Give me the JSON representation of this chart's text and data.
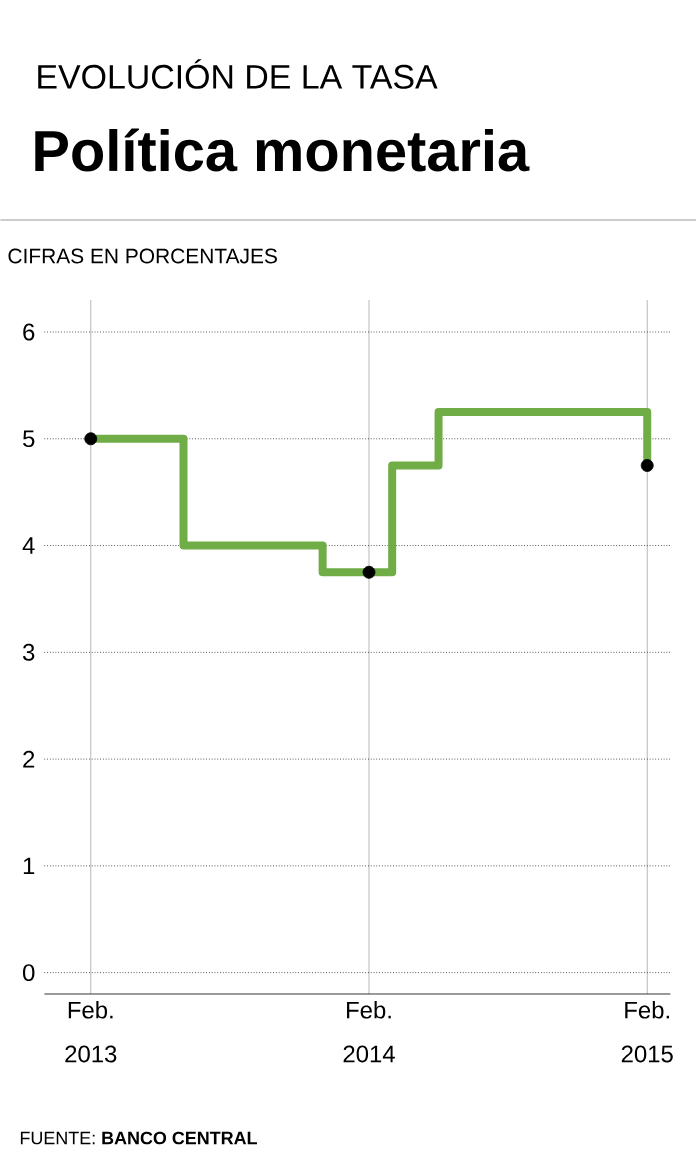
{
  "chart_data": {
    "type": "step",
    "subtitle": "EVOLUCIÓN DE LA TASA",
    "title": "Política monetaria",
    "ylabel": "CIFRAS EN PORCENTAJES",
    "series": [
      {
        "color": "#70ad47",
        "x": [
          "2013-02",
          "2013-06",
          "2013-12",
          "2014-03",
          "2014-05",
          "2015-02"
        ],
        "values": [
          5,
          4,
          3.75,
          4.75,
          5.25,
          4.75
        ]
      },
      {
        "type": "scatter",
        "color": "#000000",
        "marker": "circle",
        "x": [
          "2013-02",
          "2014-02",
          "2015-02"
        ],
        "values": [
          5,
          3.75,
          4.75
        ]
      }
    ],
    "xlim": [
      "2012-12",
      "2015-03"
    ],
    "ylim": [
      -0.2,
      6.3
    ],
    "xticks": [
      {
        "value": "2013-02",
        "label": "Feb. 2013"
      },
      {
        "value": "2014-02",
        "label": "Feb. 2014"
      },
      {
        "value": "2015-02",
        "label": "Feb. 2015"
      }
    ],
    "yticks": [
      0,
      1,
      2,
      3,
      4,
      5,
      6
    ],
    "grid": true,
    "annotations": [
      "FUENTE: **BANCO CENTRAL**"
    ]
  }
}
